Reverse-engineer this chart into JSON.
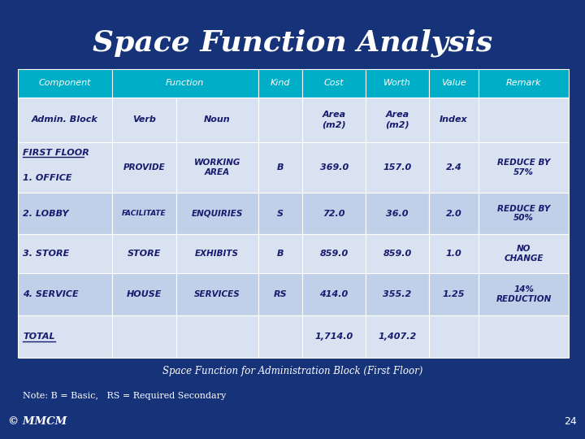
{
  "title": "Space Function Analysis",
  "subtitle": "Space Function for Administration Block (First Floor)",
  "note": "Note: B = Basic,   RS = Required Secondary",
  "copyright": "© MMCM",
  "page_num": "24",
  "bg_color": "#16337a",
  "header_bg": "#00aec7",
  "row_bg_light": "#d9e2f0",
  "row_bg_mid": "#c0d0e8",
  "header_text_color": "#ffffff",
  "title_color": "#ffffff",
  "cell_text_color": "#1a1a6e",
  "border_color": "#ffffff"
}
